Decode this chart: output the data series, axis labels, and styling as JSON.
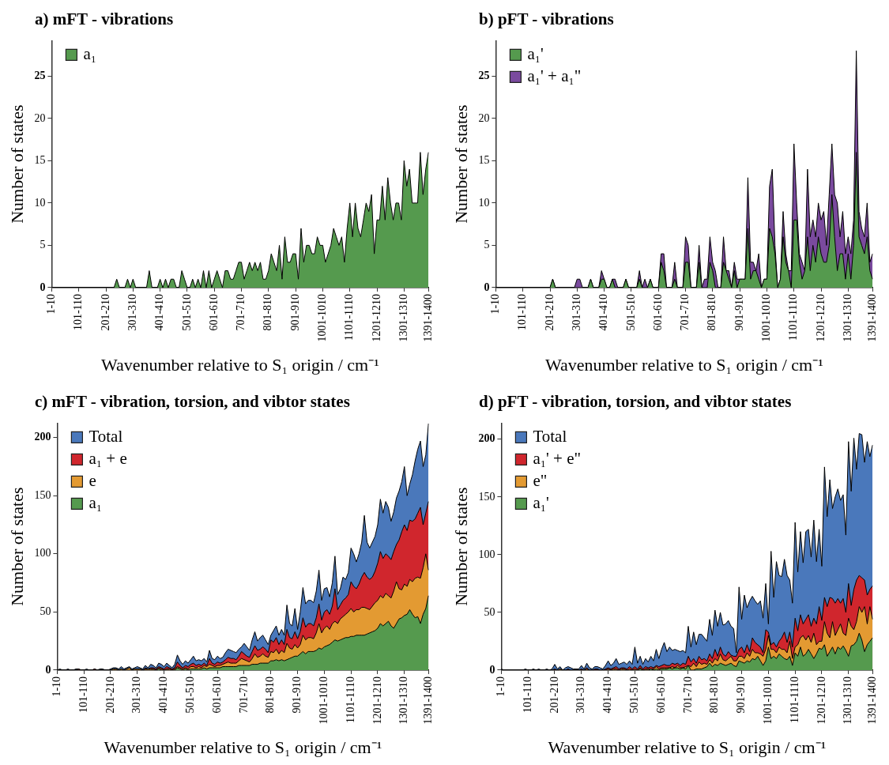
{
  "chart_data": [
    {
      "type": "area",
      "title": "a) mFT - vibrations",
      "xlabel": "Wavenumber relative to S₁ origin / cm⁻¹",
      "ylabel": "Number of states",
      "legend": "top left",
      "categories": [
        "1-10",
        null,
        null,
        null,
        null,
        null,
        null,
        null,
        null,
        null,
        "101-110",
        null,
        null,
        null,
        null,
        null,
        null,
        null,
        null,
        null,
        "201-210",
        null,
        null,
        null,
        null,
        null,
        null,
        null,
        null,
        null,
        "301-310",
        null,
        null,
        null,
        null,
        null,
        null,
        null,
        null,
        null,
        "401-410",
        null,
        null,
        null,
        null,
        null,
        null,
        null,
        null,
        null,
        "501-510",
        null,
        null,
        null,
        null,
        null,
        null,
        null,
        null,
        null,
        "601-610",
        null,
        null,
        null,
        null,
        null,
        null,
        null,
        null,
        null,
        "701-710",
        null,
        null,
        null,
        null,
        null,
        null,
        null,
        null,
        null,
        "801-810",
        null,
        null,
        null,
        null,
        null,
        null,
        null,
        null,
        null,
        "901-910",
        null,
        null,
        null,
        null,
        null,
        null,
        null,
        null,
        null,
        "1001-1010",
        null,
        null,
        null,
        null,
        null,
        null,
        null,
        null,
        null,
        "1101-1110",
        null,
        null,
        null,
        null,
        null,
        null,
        null,
        null,
        null,
        "1201-1210",
        null,
        null,
        null,
        null,
        null,
        null,
        null,
        null,
        null,
        "1301-1310",
        null,
        null,
        null,
        null,
        null,
        null,
        null,
        null,
        "1391-1400"
      ],
      "ylim": [
        0,
        29.2
      ],
      "yticks": [
        0,
        5,
        10,
        15,
        20,
        25
      ],
      "series": [
        {
          "name": "a₁",
          "color": "#559a4e",
          "values": [
            0,
            0,
            0,
            0,
            0,
            0,
            0,
            0,
            0,
            0,
            0,
            0,
            0,
            0,
            0,
            0,
            0,
            0,
            0,
            0,
            0,
            0,
            0,
            0,
            1,
            0,
            0,
            0,
            1,
            0,
            1,
            0,
            0,
            0,
            0,
            0,
            2,
            0,
            0,
            0,
            1,
            0,
            1,
            0,
            1,
            1,
            0,
            0,
            2,
            1,
            0,
            0,
            1,
            0,
            1,
            0,
            2,
            0,
            2,
            0,
            1,
            2,
            1,
            0,
            2,
            2,
            1,
            1,
            2,
            3,
            3,
            1,
            2,
            3,
            2,
            3,
            2,
            3,
            1,
            1,
            2,
            4,
            3,
            2,
            5,
            1,
            6,
            3,
            3,
            4,
            4,
            1,
            7,
            3,
            5,
            5,
            4,
            4,
            6,
            5,
            5,
            3,
            4,
            5,
            7,
            6,
            5,
            6,
            3,
            7,
            10,
            6,
            10,
            7,
            6,
            8,
            10,
            9,
            11,
            4,
            8,
            8,
            12,
            8,
            13,
            10,
            8,
            10,
            10,
            8,
            15,
            12,
            14,
            10,
            10,
            10,
            16,
            11,
            14,
            16
          ]
        }
      ]
    },
    {
      "type": "area",
      "title": "b) pFT - vibrations",
      "xlabel": "Wavenumber relative to S₁ origin / cm⁻¹",
      "ylabel": "Number of states",
      "legend": "top left",
      "categories": [
        "1-10",
        null,
        null,
        null,
        null,
        null,
        null,
        null,
        null,
        null,
        "101-110",
        null,
        null,
        null,
        null,
        null,
        null,
        null,
        null,
        null,
        "201-210",
        null,
        null,
        null,
        null,
        null,
        null,
        null,
        null,
        null,
        "301-310",
        null,
        null,
        null,
        null,
        null,
        null,
        null,
        null,
        null,
        "401-410",
        null,
        null,
        null,
        null,
        null,
        null,
        null,
        null,
        null,
        "501-510",
        null,
        null,
        null,
        null,
        null,
        null,
        null,
        null,
        null,
        "601-610",
        null,
        null,
        null,
        null,
        null,
        null,
        null,
        null,
        null,
        "701-710",
        null,
        null,
        null,
        null,
        null,
        null,
        null,
        null,
        null,
        "801-810",
        null,
        null,
        null,
        null,
        null,
        null,
        null,
        null,
        null,
        "901-910",
        null,
        null,
        null,
        null,
        null,
        null,
        null,
        null,
        null,
        "1001-1010",
        null,
        null,
        null,
        null,
        null,
        null,
        null,
        null,
        null,
        "1101-1110",
        null,
        null,
        null,
        null,
        null,
        null,
        null,
        null,
        null,
        "1201-1210",
        null,
        null,
        null,
        null,
        null,
        null,
        null,
        null,
        null,
        "1301-1310",
        null,
        null,
        null,
        null,
        null,
        null,
        null,
        null,
        "1391-1400"
      ],
      "ylim": [
        0,
        29.2
      ],
      "yticks": [
        0,
        5,
        10,
        15,
        20,
        25
      ],
      "series": [
        {
          "name": "a₁'",
          "color": "#559a4e",
          "values": [
            0,
            0,
            0,
            0,
            0,
            0,
            0,
            0,
            0,
            0,
            0,
            0,
            0,
            0,
            0,
            0,
            0,
            0,
            0,
            0,
            0,
            1,
            0,
            0,
            0,
            0,
            0,
            0,
            0,
            0,
            0,
            0,
            0,
            0,
            0,
            1,
            0,
            0,
            0,
            1,
            1,
            0,
            0,
            1,
            0,
            0,
            0,
            0,
            1,
            0,
            0,
            0,
            0,
            1,
            0,
            0,
            0,
            1,
            0,
            0,
            0,
            3,
            2,
            0,
            0,
            0,
            1,
            0,
            0,
            0,
            3,
            3,
            0,
            0,
            0,
            3,
            0,
            0,
            0,
            3,
            2,
            0,
            0,
            0,
            3,
            2,
            1,
            0,
            2,
            0,
            1,
            1,
            1,
            7,
            1,
            2,
            2,
            1,
            0,
            1,
            1,
            7,
            6,
            4,
            0,
            1,
            6,
            3,
            2,
            0,
            8,
            8,
            3,
            1,
            2,
            6,
            2,
            5,
            3,
            6,
            4,
            3,
            3,
            5,
            11,
            6,
            2,
            4,
            4,
            1,
            4,
            1,
            5,
            16,
            6,
            5,
            4,
            6,
            2,
            1
          ]
        },
        {
          "name": "a₁' + a₁\"",
          "color": "#7a4a9e",
          "values": [
            0,
            0,
            0,
            0,
            0,
            0,
            0,
            0,
            0,
            0,
            0,
            0,
            0,
            0,
            0,
            0,
            0,
            0,
            0,
            0,
            0,
            1,
            0,
            0,
            0,
            0,
            0,
            0,
            0,
            0,
            1,
            1,
            0,
            0,
            0,
            1,
            0,
            0,
            0,
            2,
            1,
            0,
            0,
            1,
            1,
            0,
            0,
            0,
            1,
            0,
            0,
            0,
            0,
            2,
            0,
            1,
            0,
            1,
            0,
            0,
            0,
            4,
            4,
            0,
            0,
            0,
            3,
            0,
            0,
            0,
            6,
            5,
            0,
            0,
            0,
            5,
            0,
            1,
            1,
            6,
            3,
            2,
            0,
            0,
            6,
            2,
            2,
            0,
            3,
            1,
            1,
            1,
            1,
            13,
            3,
            3,
            2,
            4,
            0,
            1,
            1,
            12,
            14,
            5,
            0,
            1,
            9,
            4,
            2,
            2,
            17,
            10,
            4,
            3,
            2,
            14,
            6,
            8,
            6,
            10,
            8,
            9,
            5,
            11,
            17,
            11,
            10,
            6,
            9,
            4,
            6,
            4,
            8,
            28,
            9,
            7,
            6,
            10,
            3,
            4
          ]
        }
      ]
    },
    {
      "type": "area",
      "title": "c) mFT - vibration, torsion, and vibtor states",
      "xlabel": "Wavenumber relative to S₁ origin / cm⁻¹",
      "ylabel": "Number of states",
      "legend": "top left",
      "categories": [
        "1-10",
        null,
        null,
        null,
        null,
        null,
        null,
        null,
        null,
        null,
        "101-110",
        null,
        null,
        null,
        null,
        null,
        null,
        null,
        null,
        null,
        "201-210",
        null,
        null,
        null,
        null,
        null,
        null,
        null,
        null,
        null,
        "301-310",
        null,
        null,
        null,
        null,
        null,
        null,
        null,
        null,
        null,
        "401-410",
        null,
        null,
        null,
        null,
        null,
        null,
        null,
        null,
        null,
        "501-510",
        null,
        null,
        null,
        null,
        null,
        null,
        null,
        null,
        null,
        "601-610",
        null,
        null,
        null,
        null,
        null,
        null,
        null,
        null,
        null,
        "701-710",
        null,
        null,
        null,
        null,
        null,
        null,
        null,
        null,
        null,
        "801-810",
        null,
        null,
        null,
        null,
        null,
        null,
        null,
        null,
        null,
        "901-910",
        null,
        null,
        null,
        null,
        null,
        null,
        null,
        null,
        null,
        "1001-1010",
        null,
        null,
        null,
        null,
        null,
        null,
        null,
        null,
        null,
        "1101-1110",
        null,
        null,
        null,
        null,
        null,
        null,
        null,
        null,
        null,
        "1201-1210",
        null,
        null,
        null,
        null,
        null,
        null,
        null,
        null,
        null,
        "1301-1310",
        null,
        null,
        null,
        null,
        null,
        null,
        null,
        null,
        "1391-1400"
      ],
      "ylim": [
        0,
        212.4
      ],
      "yticks": [
        0,
        50,
        100,
        150,
        200
      ],
      "series": [
        {
          "name": "Total",
          "color": "#4a78bb",
          "values": [
            0,
            1,
            0,
            0,
            1,
            0,
            0,
            1,
            1,
            0,
            0,
            1,
            0,
            0,
            1,
            0,
            1,
            1,
            0,
            0,
            1,
            2,
            2,
            1,
            3,
            1,
            2,
            3,
            1,
            2,
            3,
            2,
            1,
            4,
            2,
            5,
            4,
            2,
            6,
            5,
            3,
            6,
            4,
            2,
            5,
            13,
            8,
            5,
            8,
            6,
            9,
            12,
            8,
            9,
            8,
            10,
            7,
            17,
            10,
            9,
            12,
            10,
            11,
            15,
            18,
            17,
            16,
            15,
            18,
            20,
            23,
            20,
            17,
            26,
            33,
            25,
            28,
            30,
            26,
            22,
            30,
            34,
            38,
            30,
            35,
            30,
            56,
            40,
            38,
            53,
            35,
            50,
            71,
            57,
            60,
            60,
            58,
            68,
            86,
            60,
            70,
            71,
            63,
            75,
            98,
            65,
            70,
            80,
            78,
            84,
            105,
            100,
            93,
            100,
            110,
            133,
            110,
            105,
            110,
            115,
            125,
            147,
            135,
            145,
            140,
            128,
            136,
            148,
            154,
            162,
            175,
            150,
            160,
            168,
            180,
            190,
            197,
            175,
            185,
            212
          ]
        },
        {
          "name": "a₁ + e",
          "color": "#d0262d",
          "values": [
            0,
            0,
            0,
            0,
            0,
            0,
            0,
            0,
            1,
            0,
            0,
            0,
            0,
            0,
            1,
            0,
            0,
            0,
            0,
            0,
            0,
            1,
            1,
            0,
            1,
            0,
            1,
            2,
            0,
            1,
            1,
            1,
            0,
            2,
            1,
            2,
            2,
            1,
            3,
            2,
            1,
            3,
            2,
            1,
            2,
            7,
            4,
            2,
            4,
            3,
            5,
            6,
            4,
            5,
            4,
            6,
            4,
            10,
            6,
            5,
            7,
            6,
            7,
            9,
            11,
            10,
            10,
            9,
            12,
            16,
            14,
            12,
            11,
            16,
            21,
            17,
            18,
            20,
            18,
            15,
            26,
            24,
            28,
            22,
            26,
            22,
            35,
            28,
            27,
            33,
            27,
            33,
            45,
            37,
            40,
            40,
            38,
            45,
            57,
            43,
            50,
            52,
            48,
            55,
            70,
            52,
            56,
            60,
            62,
            65,
            76,
            72,
            70,
            74,
            80,
            84,
            80,
            78,
            80,
            85,
            92,
            102,
            96,
            100,
            98,
            95,
            102,
            108,
            112,
            119,
            125,
            120,
            129,
            128,
            130,
            135,
            140,
            125,
            135,
            145
          ]
        },
        {
          "name": "e",
          "color": "#e39a32",
          "values": [
            0,
            0,
            0,
            0,
            0,
            0,
            0,
            0,
            0,
            0,
            0,
            0,
            0,
            0,
            0,
            0,
            0,
            0,
            0,
            0,
            0,
            1,
            1,
            0,
            1,
            0,
            1,
            2,
            0,
            1,
            1,
            1,
            0,
            1,
            1,
            1,
            1,
            0,
            2,
            1,
            0,
            1,
            1,
            0,
            1,
            3,
            2,
            1,
            2,
            1,
            3,
            3,
            2,
            3,
            2,
            4,
            3,
            5,
            4,
            3,
            4,
            4,
            5,
            6,
            7,
            6,
            6,
            6,
            8,
            10,
            9,
            8,
            7,
            10,
            14,
            11,
            12,
            14,
            12,
            11,
            16,
            15,
            18,
            14,
            17,
            15,
            23,
            19,
            18,
            22,
            19,
            22,
            30,
            26,
            28,
            28,
            27,
            32,
            40,
            32,
            36,
            38,
            35,
            40,
            42,
            40,
            44,
            46,
            48,
            50,
            53,
            50,
            52,
            52,
            54,
            54,
            53,
            52,
            55,
            58,
            60,
            64,
            62,
            66,
            64,
            62,
            68,
            76,
            70,
            69,
            74,
            72,
            78,
            76,
            79,
            80,
            79,
            88,
            100,
            86
          ]
        },
        {
          "name": "a₁",
          "color": "#559a4e",
          "values": [
            0,
            0,
            0,
            0,
            0,
            0,
            0,
            0,
            0,
            0,
            0,
            0,
            0,
            0,
            0,
            0,
            0,
            0,
            0,
            0,
            0,
            0,
            0,
            0,
            0,
            0,
            0,
            0,
            0,
            0,
            0,
            0,
            0,
            0,
            0,
            0,
            0,
            0,
            1,
            0,
            0,
            0,
            0,
            0,
            0,
            2,
            1,
            0,
            1,
            0,
            1,
            1,
            1,
            1,
            1,
            2,
            1,
            2,
            2,
            2,
            2,
            2,
            3,
            3,
            3,
            3,
            3,
            3,
            4,
            4,
            4,
            4,
            4,
            5,
            5,
            5,
            6,
            6,
            6,
            6,
            8,
            8,
            9,
            8,
            9,
            8,
            9,
            10,
            11,
            12,
            12,
            14,
            16,
            14,
            16,
            16,
            16,
            17,
            19,
            18,
            20,
            21,
            22,
            24,
            26,
            25,
            26,
            27,
            28,
            28,
            29,
            29,
            30,
            30,
            30,
            30,
            31,
            32,
            33,
            34,
            36,
            40,
            38,
            40,
            42,
            38,
            36,
            40,
            44,
            45,
            47,
            48,
            52,
            48,
            45,
            46,
            40,
            48,
            53,
            64
          ]
        }
      ]
    },
    {
      "type": "area",
      "title": "d) pFT - vibration, torsion, and vibtor states",
      "xlabel": "Wavenumber relative to S₁ origin / cm⁻¹",
      "ylabel": "Number of states",
      "legend": "top left",
      "categories": [
        "1-10",
        null,
        null,
        null,
        null,
        null,
        null,
        null,
        null,
        null,
        "101-110",
        null,
        null,
        null,
        null,
        null,
        null,
        null,
        null,
        null,
        "201-210",
        null,
        null,
        null,
        null,
        null,
        null,
        null,
        null,
        null,
        "301-310",
        null,
        null,
        null,
        null,
        null,
        null,
        null,
        null,
        null,
        "401-410",
        null,
        null,
        null,
        null,
        null,
        null,
        null,
        null,
        null,
        "501-510",
        null,
        null,
        null,
        null,
        null,
        null,
        null,
        null,
        null,
        "601-610",
        null,
        null,
        null,
        null,
        null,
        null,
        null,
        null,
        null,
        "701-710",
        null,
        null,
        null,
        null,
        null,
        null,
        null,
        null,
        null,
        "801-810",
        null,
        null,
        null,
        null,
        null,
        null,
        null,
        null,
        null,
        "901-910",
        null,
        null,
        null,
        null,
        null,
        null,
        null,
        null,
        null,
        "1001-1010",
        null,
        null,
        null,
        null,
        null,
        null,
        null,
        null,
        null,
        "1101-1110",
        null,
        null,
        null,
        null,
        null,
        null,
        null,
        null,
        null,
        "1201-1210",
        null,
        null,
        null,
        null,
        null,
        null,
        null,
        null,
        null,
        "1301-1310",
        null,
        null,
        null,
        null,
        null,
        null,
        null,
        null,
        "1391-1400"
      ],
      "ylim": [
        0,
        214
      ],
      "yticks": [
        0,
        50,
        100,
        150,
        200
      ],
      "series": [
        {
          "name": "Total",
          "color": "#4a78bb",
          "values": [
            1,
            0,
            0,
            0,
            0,
            0,
            0,
            0,
            0,
            1,
            0,
            0,
            1,
            0,
            1,
            0,
            0,
            1,
            0,
            1,
            5,
            1,
            3,
            0,
            2,
            3,
            2,
            1,
            1,
            1,
            4,
            1,
            6,
            2,
            1,
            3,
            3,
            2,
            1,
            4,
            8,
            4,
            6,
            10,
            5,
            6,
            7,
            5,
            8,
            5,
            20,
            6,
            12,
            5,
            10,
            7,
            12,
            8,
            18,
            10,
            18,
            24,
            16,
            20,
            17,
            18,
            17,
            16,
            17,
            15,
            38,
            20,
            33,
            22,
            31,
            31,
            28,
            25,
            44,
            30,
            52,
            38,
            50,
            39,
            40,
            43,
            38,
            36,
            15,
            72,
            44,
            65,
            54,
            60,
            64,
            60,
            57,
            60,
            45,
            75,
            40,
            103,
            63,
            94,
            82,
            81,
            96,
            82,
            78,
            58,
            128,
            85,
            120,
            93,
            120,
            122,
            98,
            130,
            94,
            122,
            90,
            176,
            133,
            165,
            140,
            150,
            157,
            147,
            152,
            117,
            198,
            155,
            201,
            174,
            205,
            204,
            180,
            198,
            185,
            195
          ]
        },
        {
          "name": "a₁' + e\"",
          "color": "#d0262d",
          "values": [
            0,
            0,
            0,
            0,
            0,
            0,
            0,
            0,
            0,
            0,
            0,
            0,
            0,
            0,
            0,
            0,
            0,
            0,
            0,
            0,
            1,
            0,
            1,
            0,
            0,
            1,
            0,
            0,
            0,
            0,
            1,
            0,
            2,
            0,
            0,
            1,
            1,
            0,
            0,
            1,
            2,
            1,
            2,
            3,
            1,
            2,
            2,
            1,
            3,
            1,
            3,
            1,
            4,
            1,
            3,
            2,
            3,
            2,
            4,
            3,
            4,
            5,
            4,
            4,
            6,
            5,
            6,
            4,
            6,
            5,
            12,
            7,
            10,
            6,
            12,
            9,
            10,
            8,
            14,
            10,
            18,
            12,
            20,
            14,
            12,
            16,
            13,
            12,
            12,
            18,
            20,
            15,
            22,
            16,
            28,
            24,
            22,
            20,
            15,
            35,
            33,
            22,
            24,
            20,
            25,
            28,
            33,
            24,
            33,
            20,
            45,
            34,
            48,
            40,
            44,
            48,
            38,
            45,
            40,
            55,
            43,
            63,
            55,
            63,
            62,
            58,
            62,
            58,
            62,
            50,
            75,
            56,
            70,
            78,
            82,
            80,
            78,
            65,
            70,
            73
          ]
        },
        {
          "name": "e\"",
          "color": "#e39a32",
          "values": [
            0,
            0,
            0,
            0,
            0,
            0,
            0,
            0,
            0,
            0,
            0,
            0,
            0,
            0,
            0,
            0,
            0,
            0,
            0,
            0,
            0,
            0,
            1,
            0,
            0,
            0,
            0,
            0,
            0,
            0,
            0,
            0,
            1,
            0,
            0,
            0,
            0,
            0,
            0,
            0,
            1,
            0,
            1,
            1,
            0,
            1,
            1,
            0,
            1,
            0,
            1,
            0,
            2,
            0,
            1,
            1,
            1,
            1,
            3,
            1,
            2,
            2,
            2,
            2,
            3,
            2,
            4,
            2,
            2,
            3,
            4,
            3,
            6,
            3,
            7,
            5,
            6,
            5,
            9,
            6,
            10,
            8,
            14,
            9,
            8,
            10,
            12,
            8,
            8,
            12,
            12,
            10,
            15,
            12,
            18,
            15,
            15,
            14,
            12,
            18,
            30,
            18,
            18,
            15,
            20,
            18,
            18,
            15,
            25,
            10,
            20,
            22,
            28,
            30,
            26,
            30,
            24,
            32,
            22,
            25,
            25,
            42,
            32,
            28,
            42,
            30,
            35,
            40,
            32,
            30,
            45,
            38,
            35,
            42,
            55,
            50,
            55,
            40,
            55,
            44
          ]
        },
        {
          "name": "a₁'",
          "color": "#559a4e",
          "values": [
            0,
            0,
            0,
            0,
            0,
            0,
            0,
            0,
            0,
            0,
            0,
            0,
            0,
            0,
            0,
            0,
            0,
            0,
            0,
            0,
            0,
            0,
            0,
            0,
            0,
            0,
            0,
            0,
            0,
            0,
            0,
            0,
            0,
            0,
            0,
            0,
            0,
            0,
            0,
            0,
            0,
            0,
            0,
            0,
            0,
            0,
            0,
            0,
            0,
            0,
            0,
            0,
            1,
            0,
            0,
            0,
            1,
            0,
            1,
            0,
            1,
            1,
            1,
            2,
            1,
            2,
            2,
            1,
            2,
            1,
            4,
            0,
            0,
            1,
            1,
            1,
            2,
            3,
            6,
            3,
            5,
            4,
            6,
            5,
            4,
            5,
            6,
            4,
            3,
            8,
            7,
            6,
            8,
            7,
            10,
            9,
            12,
            8,
            4,
            8,
            20,
            10,
            12,
            10,
            14,
            12,
            10,
            9,
            12,
            4,
            15,
            12,
            20,
            12,
            14,
            18,
            14,
            10,
            14,
            19,
            18,
            22,
            12,
            16,
            20,
            14,
            20,
            18,
            21,
            17,
            12,
            21,
            22,
            25,
            32,
            26,
            16,
            22,
            25,
            28
          ]
        }
      ]
    }
  ]
}
